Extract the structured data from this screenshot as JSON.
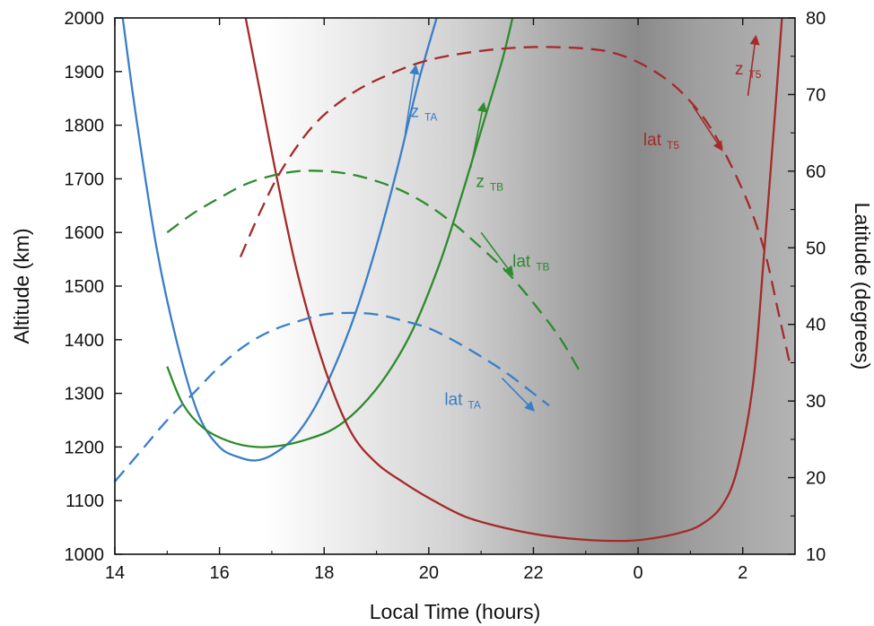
{
  "chart_data": {
    "type": "line",
    "xlabel": "Local Time (hours)",
    "ylabel_left": "Altitude (km)",
    "ylabel_right": "Latitude (degrees)",
    "x_ticks": [
      {
        "t": 14,
        "label": "14"
      },
      {
        "t": 16,
        "label": "16"
      },
      {
        "t": 18,
        "label": "18"
      },
      {
        "t": 20,
        "label": "20"
      },
      {
        "t": 22,
        "label": "22"
      },
      {
        "t": 24,
        "label": "0"
      },
      {
        "t": 26,
        "label": "2"
      }
    ],
    "xlim": [
      14,
      27
    ],
    "ylim_left": [
      1000,
      2000
    ],
    "ylim_right": [
      10,
      80
    ],
    "y_left_ticks": [
      "1000",
      "1100",
      "1200",
      "1300",
      "1400",
      "1500",
      "1600",
      "1700",
      "1800",
      "1900",
      "2000"
    ],
    "y_right_ticks": [
      "10",
      "20",
      "30",
      "40",
      "50",
      "60",
      "70",
      "80"
    ],
    "grid": false,
    "background": "day-to-night gray gradient",
    "series": [
      {
        "key": "zTA",
        "axis": "left",
        "style": "solid",
        "color": "#3a7ec8",
        "points": [
          [
            14.15,
            2000
          ],
          [
            14.4,
            1820
          ],
          [
            14.8,
            1570
          ],
          [
            15.2,
            1390
          ],
          [
            15.6,
            1260
          ],
          [
            16.0,
            1200
          ],
          [
            16.4,
            1180
          ],
          [
            16.7,
            1175
          ],
          [
            17.0,
            1185
          ],
          [
            17.4,
            1215
          ],
          [
            17.8,
            1270
          ],
          [
            18.2,
            1350
          ],
          [
            18.6,
            1450
          ],
          [
            19.0,
            1575
          ],
          [
            19.4,
            1720
          ],
          [
            19.8,
            1880
          ],
          [
            20.15,
            2000
          ]
        ]
      },
      {
        "key": "zTB",
        "axis": "left",
        "style": "solid",
        "color": "#2e8b2e",
        "points": [
          [
            15.0,
            1350
          ],
          [
            15.3,
            1280
          ],
          [
            15.7,
            1235
          ],
          [
            16.2,
            1210
          ],
          [
            16.7,
            1200
          ],
          [
            17.2,
            1203
          ],
          [
            17.7,
            1215
          ],
          [
            18.2,
            1235
          ],
          [
            18.7,
            1275
          ],
          [
            19.2,
            1335
          ],
          [
            19.7,
            1420
          ],
          [
            20.2,
            1540
          ],
          [
            20.6,
            1660
          ],
          [
            21.0,
            1790
          ],
          [
            21.4,
            1920
          ],
          [
            21.6,
            2000
          ]
        ]
      },
      {
        "key": "zT5",
        "axis": "left",
        "style": "solid",
        "color": "#a52a2a",
        "points": [
          [
            16.5,
            2000
          ],
          [
            16.8,
            1850
          ],
          [
            17.1,
            1700
          ],
          [
            17.5,
            1520
          ],
          [
            18.0,
            1350
          ],
          [
            18.5,
            1230
          ],
          [
            19.0,
            1170
          ],
          [
            19.5,
            1135
          ],
          [
            20.0,
            1105
          ],
          [
            20.7,
            1070
          ],
          [
            21.5,
            1048
          ],
          [
            22.2,
            1035
          ],
          [
            23.0,
            1027
          ],
          [
            23.8,
            1025
          ],
          [
            24.3,
            1030
          ],
          [
            24.8,
            1040
          ],
          [
            25.2,
            1055
          ],
          [
            25.6,
            1090
          ],
          [
            25.9,
            1160
          ],
          [
            26.2,
            1320
          ],
          [
            26.4,
            1550
          ],
          [
            26.6,
            1800
          ],
          [
            26.75,
            2000
          ]
        ]
      },
      {
        "key": "latTA",
        "axis": "right",
        "style": "dashed",
        "color": "#3a7ec8",
        "points": [
          [
            14.0,
            19.5
          ],
          [
            14.5,
            23.5
          ],
          [
            15.0,
            27.5
          ],
          [
            15.5,
            31.0
          ],
          [
            16.0,
            34.5
          ],
          [
            16.5,
            37.3
          ],
          [
            17.0,
            39.2
          ],
          [
            17.5,
            40.4
          ],
          [
            18.0,
            41.3
          ],
          [
            18.5,
            41.5
          ],
          [
            19.0,
            41.3
          ],
          [
            19.5,
            40.5
          ],
          [
            20.0,
            39.5
          ],
          [
            20.5,
            37.8
          ],
          [
            21.0,
            35.8
          ],
          [
            21.5,
            33.6
          ],
          [
            22.0,
            31.0
          ],
          [
            22.3,
            29.4
          ]
        ]
      },
      {
        "key": "latTB",
        "axis": "right",
        "style": "dashed",
        "color": "#2e8b2e",
        "points": [
          [
            15.0,
            52.0
          ],
          [
            15.5,
            54.5
          ],
          [
            16.0,
            56.5
          ],
          [
            16.5,
            58.3
          ],
          [
            17.0,
            59.4
          ],
          [
            17.5,
            60.0
          ],
          [
            18.0,
            60.0
          ],
          [
            18.5,
            59.6
          ],
          [
            19.0,
            58.7
          ],
          [
            19.5,
            57.4
          ],
          [
            20.0,
            55.5
          ],
          [
            20.5,
            53.0
          ],
          [
            21.0,
            50.0
          ],
          [
            21.5,
            46.8
          ],
          [
            22.0,
            42.8
          ],
          [
            22.5,
            38.3
          ],
          [
            22.9,
            33.7
          ]
        ]
      },
      {
        "key": "latT5",
        "axis": "right",
        "style": "dashed",
        "color": "#a52a2a",
        "points": [
          [
            16.4,
            48.8
          ],
          [
            16.8,
            55.0
          ],
          [
            17.2,
            60.3
          ],
          [
            17.8,
            66.0
          ],
          [
            18.5,
            70.0
          ],
          [
            19.2,
            72.5
          ],
          [
            20.0,
            74.5
          ],
          [
            21.0,
            75.7
          ],
          [
            22.0,
            76.2
          ],
          [
            23.0,
            76.0
          ],
          [
            23.6,
            75.3
          ],
          [
            24.2,
            73.5
          ],
          [
            24.8,
            70.5
          ],
          [
            25.4,
            65.5
          ],
          [
            26.0,
            57.5
          ],
          [
            26.4,
            50.0
          ],
          [
            26.7,
            41.0
          ],
          [
            26.9,
            34.9
          ]
        ]
      }
    ],
    "annotations": [
      {
        "key": "zTA",
        "main": "z",
        "sub": "TA",
        "color": "#3a7ec8",
        "at": [
          19.65,
          1815
        ],
        "arrow": [
          [
            19.55,
            1785
          ],
          [
            19.75,
            1910
          ]
        ]
      },
      {
        "key": "zTB",
        "main": "z",
        "sub": "TB",
        "color": "#2e8b2e",
        "at": [
          20.9,
          1685
        ],
        "arrow": [
          [
            20.8,
            1720
          ],
          [
            21.05,
            1840
          ]
        ]
      },
      {
        "key": "zT5",
        "main": "z",
        "sub": "T5",
        "color": "#a52a2a",
        "at": [
          25.85,
          1895
        ],
        "arrow": [
          [
            26.1,
            1855
          ],
          [
            26.25,
            1965
          ]
        ]
      },
      {
        "key": "latT5",
        "main": "lat",
        "sub": "T5",
        "color": "#a52a2a",
        "at": [
          24.1,
          63.4
        ],
        "arrow": [
          [
            25.05,
            68.5
          ],
          [
            25.6,
            62.8
          ]
        ]
      },
      {
        "key": "latTB",
        "main": "lat",
        "sub": "TB",
        "color": "#2e8b2e",
        "at": [
          21.6,
          47.5
        ],
        "arrow": [
          [
            21.0,
            52.0
          ],
          [
            21.6,
            46.5
          ]
        ]
      },
      {
        "key": "latTA",
        "main": "lat",
        "sub": "TA",
        "color": "#3a7ec8",
        "at": [
          20.3,
          29.5
        ],
        "arrow": [
          [
            21.4,
            33.0
          ],
          [
            22.0,
            28.8
          ]
        ]
      }
    ]
  }
}
